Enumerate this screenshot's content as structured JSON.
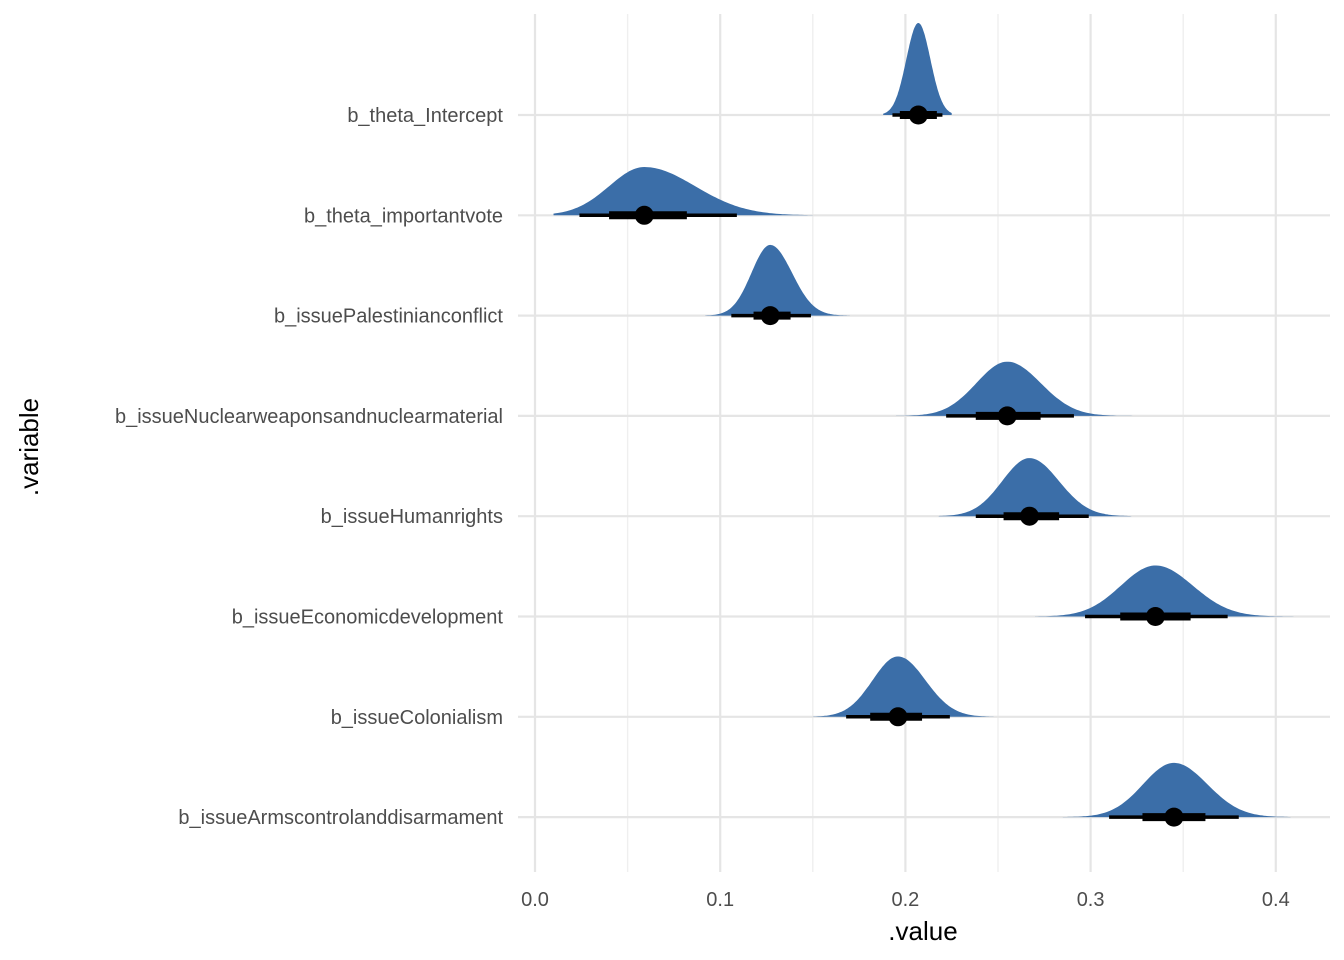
{
  "chart_data": {
    "type": "halfeye",
    "xlabel": ".value",
    "ylabel": ".variable",
    "xlim": [
      0.0,
      0.42
    ],
    "x_ticks": [
      0.0,
      0.1,
      0.2,
      0.3,
      0.4
    ],
    "x_tick_labels": [
      "0.0",
      "0.1",
      "0.2",
      "0.3",
      "0.4"
    ],
    "grid": true,
    "fill_color": "#3b6ea8",
    "point_color": "#000000",
    "series": [
      {
        "name": "b_theta_Intercept",
        "median": 0.207,
        "q66": [
          0.197,
          0.217
        ],
        "q95": [
          0.193,
          0.22
        ],
        "density_range": [
          0.188,
          0.225
        ],
        "sd": 0.0065,
        "skew": 0
      },
      {
        "name": "b_theta_importantvote",
        "median": 0.059,
        "q66": [
          0.04,
          0.082
        ],
        "q95": [
          0.024,
          0.109
        ],
        "density_range": [
          0.01,
          0.15
        ],
        "sd": 0.021,
        "skew": 0.5
      },
      {
        "name": "b_issuePalestinianconflict",
        "median": 0.127,
        "q66": [
          0.118,
          0.138
        ],
        "q95": [
          0.106,
          0.149
        ],
        "density_range": [
          0.092,
          0.17
        ],
        "sd": 0.0105,
        "skew": 0.2
      },
      {
        "name": "b_issueNuclearweaponsandnuclearmaterial",
        "median": 0.255,
        "q66": [
          0.238,
          0.273
        ],
        "q95": [
          0.222,
          0.291
        ],
        "density_range": [
          0.195,
          0.325
        ],
        "sd": 0.017,
        "skew": 0.1
      },
      {
        "name": "b_issueHumanrights",
        "median": 0.267,
        "q66": [
          0.253,
          0.283
        ],
        "q95": [
          0.238,
          0.299
        ],
        "density_range": [
          0.218,
          0.322
        ],
        "sd": 0.015,
        "skew": 0.1
      },
      {
        "name": "b_issueEconomicdevelopment",
        "median": 0.335,
        "q66": [
          0.316,
          0.354
        ],
        "q95": [
          0.297,
          0.374
        ],
        "density_range": [
          0.27,
          0.41
        ],
        "sd": 0.019,
        "skew": 0.1
      },
      {
        "name": "b_issueColonialism",
        "median": 0.196,
        "q66": [
          0.181,
          0.209
        ],
        "q95": [
          0.168,
          0.224
        ],
        "density_range": [
          0.15,
          0.248
        ],
        "sd": 0.014,
        "skew": 0.1
      },
      {
        "name": "b_issueArmscontrolanddisarmament",
        "median": 0.345,
        "q66": [
          0.328,
          0.362
        ],
        "q95": [
          0.31,
          0.38
        ],
        "density_range": [
          0.285,
          0.408
        ],
        "sd": 0.017,
        "skew": 0.1
      }
    ]
  }
}
